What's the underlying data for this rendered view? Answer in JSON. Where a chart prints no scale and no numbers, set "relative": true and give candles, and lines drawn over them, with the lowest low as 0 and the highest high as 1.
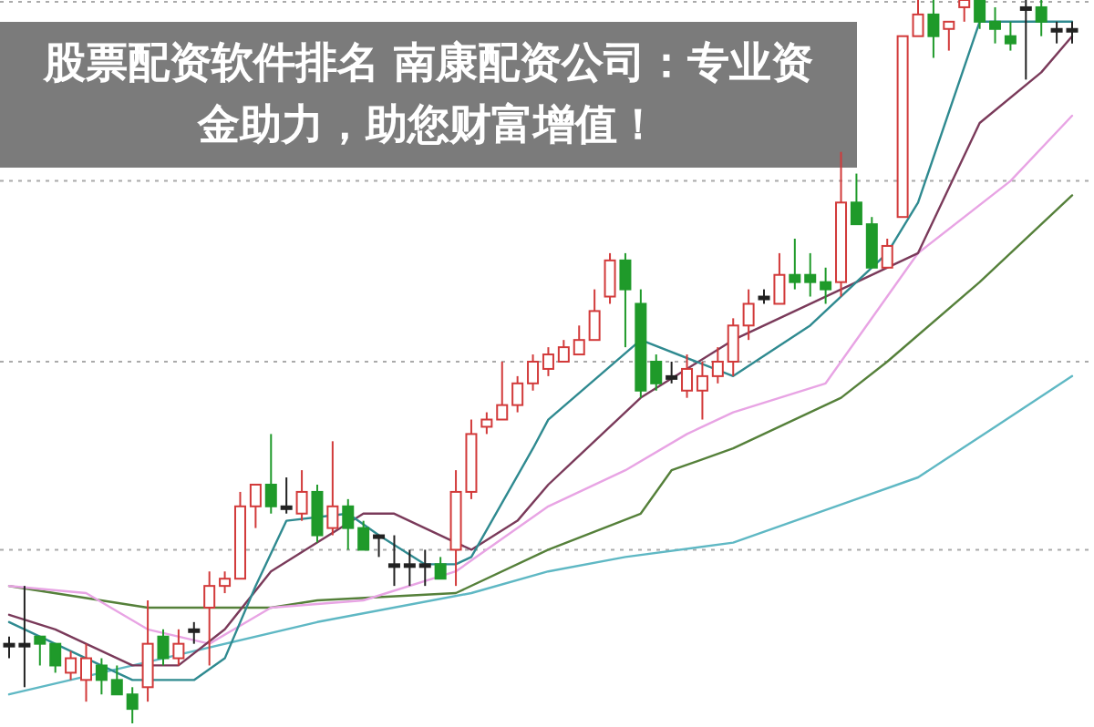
{
  "chart_data": {
    "type": "candlestick",
    "relative": true,
    "title": "股票配资软件排名 南康配资公司：专业资金助力，助您财富增值！",
    "categories": [
      null,
      null,
      null,
      null,
      null,
      null,
      null,
      null,
      null,
      null,
      null,
      null,
      null,
      null,
      null,
      null,
      null,
      null,
      null,
      null,
      null,
      null,
      null,
      null,
      null,
      null,
      null,
      null,
      null,
      null,
      null,
      null,
      null,
      null,
      null,
      null,
      null,
      null,
      null,
      null,
      null,
      null,
      null,
      null,
      null,
      null,
      null,
      null,
      null,
      null,
      null,
      null,
      null,
      null,
      null,
      null,
      null,
      null,
      null,
      null,
      null,
      null,
      null,
      null,
      null,
      null,
      null,
      null,
      null,
      null
    ],
    "ohlc": [
      [
        0.11,
        0.12,
        0.09,
        0.11
      ],
      [
        0.11,
        0.19,
        0.05,
        0.11
      ],
      [
        0.12,
        0.12,
        0.08,
        0.11
      ],
      [
        0.11,
        0.11,
        0.07,
        0.08
      ],
      [
        0.07,
        0.1,
        0.06,
        0.09
      ],
      [
        0.06,
        0.11,
        0.03,
        0.09
      ],
      [
        0.08,
        0.09,
        0.04,
        0.06
      ],
      [
        0.06,
        0.08,
        0.04,
        0.04
      ],
      [
        0.04,
        0.05,
        0,
        0.02
      ],
      [
        0.05,
        0.17,
        0.03,
        0.11
      ],
      [
        0.12,
        0.13,
        0.08,
        0.09
      ],
      [
        0.09,
        0.13,
        0.08,
        0.11
      ],
      [
        0.13,
        0.14,
        0.11,
        0.13
      ],
      [
        0.16,
        0.21,
        0.08,
        0.19
      ],
      [
        0.19,
        0.21,
        0.18,
        0.2
      ],
      [
        0.2,
        0.32,
        0.2,
        0.3
      ],
      [
        0.3,
        0.33,
        0.27,
        0.33
      ],
      [
        0.33,
        0.4,
        0.29,
        0.3
      ],
      [
        0.3,
        0.34,
        0.29,
        0.3
      ],
      [
        0.29,
        0.35,
        0.28,
        0.32
      ],
      [
        0.32,
        0.33,
        0.25,
        0.26
      ],
      [
        0.27,
        0.39,
        0.26,
        0.3
      ],
      [
        0.3,
        0.31,
        0.24,
        0.27
      ],
      [
        0.27,
        0.28,
        0.24,
        0.24
      ],
      [
        0.26,
        0.26,
        0.23,
        0.26
      ],
      [
        0.22,
        0.26,
        0.19,
        0.22
      ],
      [
        0.22,
        0.24,
        0.19,
        0.22
      ],
      [
        0.22,
        0.24,
        0.19,
        0.22
      ],
      [
        0.22,
        0.23,
        0.2,
        0.2
      ],
      [
        0.24,
        0.35,
        0.19,
        0.32
      ],
      [
        0.32,
        0.42,
        0.31,
        0.4
      ],
      [
        0.41,
        0.43,
        0.4,
        0.42
      ],
      [
        0.42,
        0.5,
        0.42,
        0.44
      ],
      [
        0.44,
        0.48,
        0.43,
        0.47
      ],
      [
        0.47,
        0.51,
        0.46,
        0.5
      ],
      [
        0.49,
        0.52,
        0.48,
        0.51
      ],
      [
        0.5,
        0.53,
        0.5,
        0.52
      ],
      [
        0.51,
        0.55,
        0.51,
        0.53
      ],
      [
        0.53,
        0.6,
        0.53,
        0.57
      ],
      [
        0.59,
        0.65,
        0.58,
        0.64
      ],
      [
        0.64,
        0.65,
        0.52,
        0.6
      ],
      [
        0.58,
        0.6,
        0.45,
        0.46
      ],
      [
        0.5,
        0.51,
        0.46,
        0.47
      ],
      [
        0.48,
        0.5,
        0.47,
        0.48
      ],
      [
        0.46,
        0.51,
        0.45,
        0.49
      ],
      [
        0.46,
        0.5,
        0.42,
        0.48
      ],
      [
        0.48,
        0.52,
        0.47,
        0.5
      ],
      [
        0.5,
        0.56,
        0.48,
        0.55
      ],
      [
        0.55,
        0.6,
        0.53,
        0.58
      ],
      [
        0.59,
        0.6,
        0.58,
        0.59
      ],
      [
        0.58,
        0.65,
        0.58,
        0.62
      ],
      [
        0.62,
        0.67,
        0.6,
        0.61
      ],
      [
        0.62,
        0.65,
        0.59,
        0.61
      ],
      [
        0.61,
        0.63,
        0.58,
        0.6
      ],
      [
        0.61,
        0.79,
        0.59,
        0.72
      ],
      [
        0.72,
        0.76,
        0.69,
        0.69
      ],
      [
        0.69,
        0.7,
        0.63,
        0.63
      ],
      [
        0.63,
        0.67,
        0.63,
        0.66
      ],
      [
        0.7,
        0.95,
        0.7,
        0.95
      ],
      [
        0.95,
        1.0,
        0.95,
        0.98
      ],
      [
        0.98,
        1.0,
        0.92,
        0.95
      ],
      [
        0.96,
        0.97,
        0.93,
        0.97
      ],
      [
        0.99,
        1.0,
        0.97,
        1.0
      ],
      [
        1.0,
        1.0,
        0.96,
        0.97
      ],
      [
        0.97,
        0.99,
        0.94,
        0.96
      ],
      [
        0.95,
        0.97,
        0.93,
        0.94
      ],
      [
        0.99,
        1.0,
        0.89,
        0.99
      ],
      [
        0.99,
        1.0,
        0.95,
        0.97
      ],
      [
        0.96,
        0.97,
        0.94,
        0.96
      ],
      [
        0.96,
        0.97,
        0.94,
        0.96
      ]
    ],
    "series": [
      {
        "type": "line",
        "color": "#5fb8c4",
        "values": [
          0.04,
          null,
          null,
          null,
          null,
          null,
          null,
          null,
          null,
          null,
          0.09,
          null,
          null,
          null,
          null,
          null,
          null,
          null,
          null,
          null,
          0.14,
          null,
          null,
          null,
          null,
          null,
          null,
          null,
          null,
          null,
          0.18,
          null,
          null,
          null,
          null,
          0.21,
          null,
          null,
          null,
          null,
          0.23,
          null,
          null,
          null,
          null,
          null,
          null,
          0.25,
          null,
          null,
          null,
          null,
          null,
          null,
          null,
          0.31,
          null,
          null,
          null,
          0.34,
          null,
          null,
          null,
          null,
          0.41,
          null,
          null,
          null,
          null,
          0.48
        ]
      },
      {
        "type": "line",
        "color": "#55803a",
        "values": [
          0.19,
          null,
          null,
          null,
          null,
          null,
          null,
          null,
          null,
          0.16,
          null,
          null,
          null,
          null,
          null,
          null,
          null,
          0.16,
          null,
          null,
          0.17,
          null,
          null,
          null,
          null,
          null,
          null,
          null,
          null,
          0.18,
          null,
          null,
          null,
          null,
          null,
          0.24,
          null,
          null,
          null,
          null,
          null,
          0.29,
          null,
          0.35,
          null,
          null,
          null,
          0.38,
          null,
          null,
          null,
          null,
          null,
          null,
          0.45,
          null,
          null,
          0.5,
          null,
          null,
          null,
          null,
          null,
          0.61,
          null,
          null,
          null,
          null,
          null,
          0.73
        ]
      },
      {
        "type": "line",
        "color": "#e8a4e4",
        "values": [
          0.19,
          null,
          null,
          null,
          null,
          0.18,
          null,
          null,
          null,
          0.13,
          null,
          null,
          null,
          0.11,
          null,
          null,
          null,
          0.16,
          null,
          null,
          null,
          null,
          null,
          0.17,
          null,
          null,
          null,
          null,
          null,
          0.21,
          null,
          null,
          null,
          null,
          null,
          0.3,
          null,
          null,
          null,
          null,
          0.35,
          null,
          null,
          null,
          0.4,
          null,
          null,
          0.43,
          null,
          null,
          null,
          null,
          null,
          0.47,
          null,
          null,
          null,
          null,
          null,
          0.65,
          null,
          null,
          null,
          null,
          null,
          0.75,
          null,
          null,
          null,
          0.84
        ]
      },
      {
        "type": "line",
        "color": "#7a3a5a",
        "values": [
          0.15,
          null,
          null,
          0.13,
          null,
          null,
          null,
          null,
          0.08,
          null,
          null,
          0.08,
          null,
          null,
          0.13,
          null,
          null,
          0.21,
          null,
          null,
          null,
          null,
          null,
          0.29,
          null,
          0.29,
          null,
          null,
          null,
          0.25,
          0.24,
          null,
          null,
          0.28,
          null,
          0.33,
          null,
          null,
          null,
          null,
          null,
          0.45,
          null,
          null,
          null,
          null,
          null,
          0.53,
          null,
          null,
          null,
          null,
          null,
          null,
          0.6,
          null,
          null,
          null,
          null,
          0.65,
          null,
          null,
          null,
          0.83,
          null,
          null,
          null,
          0.9,
          null,
          0.95
        ]
      },
      {
        "type": "line",
        "color": "#2f8a90",
        "values": [
          0.14,
          null,
          null,
          null,
          null,
          0.09,
          null,
          null,
          0.06,
          null,
          null,
          null,
          0.06,
          null,
          0.09,
          null,
          0.19,
          null,
          0.28,
          null,
          null,
          null,
          0.29,
          null,
          0.26,
          null,
          null,
          0.22,
          null,
          0.22,
          0.23,
          null,
          null,
          null,
          0.38,
          0.42,
          null,
          null,
          null,
          null,
          null,
          0.53,
          null,
          null,
          null,
          null,
          null,
          0.48,
          null,
          null,
          null,
          null,
          0.55,
          null,
          null,
          0.61,
          null,
          0.65,
          null,
          0.72,
          null,
          null,
          null,
          0.97,
          null,
          null,
          null,
          null,
          null,
          0.97
        ]
      }
    ],
    "ref_lines": [
      {
        "axis": "y",
        "value": 1.0,
        "color": "#aaaaaa",
        "line_style": "dotted"
      },
      {
        "axis": "y",
        "value": 0.75,
        "color": "#aaaaaa",
        "line_style": "dotted"
      },
      {
        "axis": "y",
        "value": 0.5,
        "color": "#aaaaaa",
        "line_style": "dotted"
      },
      {
        "axis": "y",
        "value": 0.24,
        "color": "#aaaaaa",
        "line_style": "dotted"
      }
    ]
  }
}
